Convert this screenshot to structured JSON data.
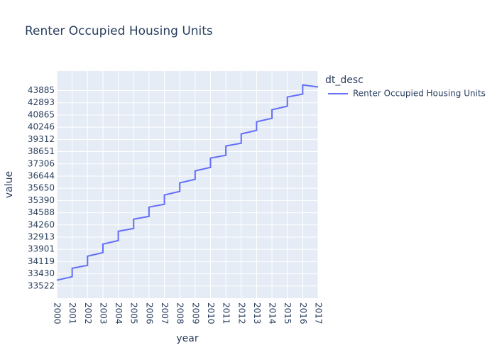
{
  "chart_data": {
    "type": "line",
    "title": "Renter Occupied Housing Units",
    "x_label": "year",
    "y_label": "value",
    "legend_title": "dt_desc",
    "legend_position": "right",
    "grid": true,
    "background": "#e5ecf6",
    "x": [
      2000,
      2001,
      2001,
      2002,
      2002,
      2003,
      2003,
      2004,
      2004,
      2005,
      2005,
      2006,
      2006,
      2007,
      2007,
      2008,
      2008,
      2009,
      2009,
      2010,
      2010,
      2011,
      2011,
      2012,
      2012,
      2013,
      2013,
      2014,
      2014,
      2015,
      2015,
      2016,
      2016,
      2017
    ],
    "series": [
      {
        "name": "Renter Occupied Housing Units",
        "color": "#636efa",
        "values": [
          0.47,
          0.76,
          1.45,
          1.69,
          2.44,
          2.73,
          3.43,
          3.72,
          4.48,
          4.71,
          5.47,
          5.7,
          6.46,
          6.69,
          7.45,
          7.74,
          8.44,
          8.73,
          9.42,
          9.71,
          10.47,
          10.7,
          11.46,
          11.69,
          12.45,
          12.74,
          13.44,
          13.73,
          14.43,
          14.72,
          15.47,
          15.71,
          16.46,
          16.29
        ]
      }
    ],
    "xlim": [
      2000,
      2017
    ],
    "xticks": [
      2000,
      2001,
      2002,
      2003,
      2004,
      2005,
      2006,
      2007,
      2008,
      2009,
      2010,
      2011,
      2012,
      2013,
      2014,
      2015,
      2016,
      2017
    ],
    "ylim": [
      -1,
      17.6
    ],
    "yticks": [
      {
        "value": 0,
        "label": "33522"
      },
      {
        "value": 1,
        "label": "33430"
      },
      {
        "value": 2,
        "label": "34119"
      },
      {
        "value": 3,
        "label": "33901"
      },
      {
        "value": 4,
        "label": "32913"
      },
      {
        "value": 5,
        "label": "34260"
      },
      {
        "value": 6,
        "label": "34588"
      },
      {
        "value": 7,
        "label": "35390"
      },
      {
        "value": 8,
        "label": "35650"
      },
      {
        "value": 9,
        "label": "36644"
      },
      {
        "value": 10,
        "label": "37306"
      },
      {
        "value": 11,
        "label": "38651"
      },
      {
        "value": 12,
        "label": "39312"
      },
      {
        "value": 13,
        "label": "40246"
      },
      {
        "value": 14,
        "label": "40865"
      },
      {
        "value": 15,
        "label": "42893"
      },
      {
        "value": 16,
        "label": "43885"
      }
    ]
  }
}
